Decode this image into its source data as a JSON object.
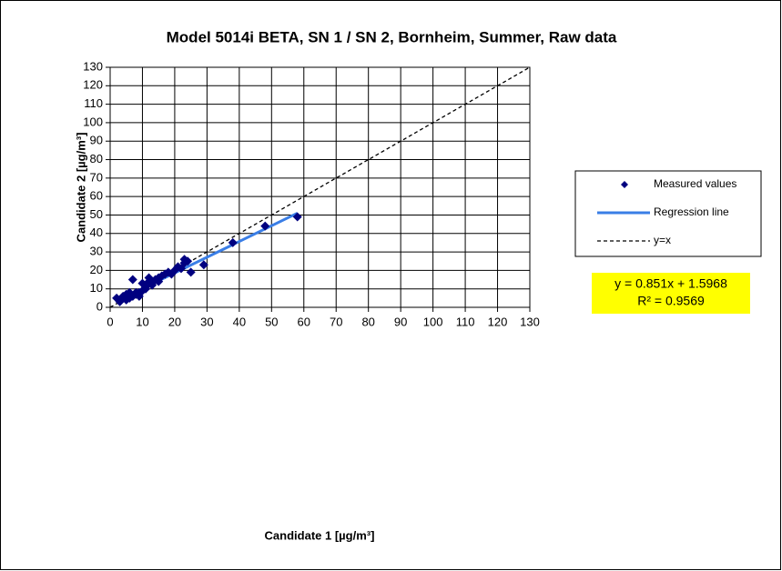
{
  "chart_data": {
    "type": "scatter",
    "title": "Model 5014i BETA, SN 1 / SN 2, Bornheim, Summer, Raw data",
    "x_label": "Candidate 1 [µg/m³]",
    "y_label": "Candidate 2 [µg/m³]",
    "xlim": [
      0,
      130
    ],
    "ylim": [
      0,
      130
    ],
    "xticks": [
      0,
      10,
      20,
      30,
      40,
      50,
      60,
      70,
      80,
      90,
      100,
      110,
      120,
      130
    ],
    "yticks": [
      0,
      10,
      20,
      30,
      40,
      50,
      60,
      70,
      80,
      90,
      100,
      110,
      120,
      130
    ],
    "grid": true,
    "legend": "right",
    "series": [
      {
        "name": "Measured values",
        "color": "#000080",
        "style": "marker",
        "x": [
          2,
          3,
          3,
          4,
          4,
          5,
          5,
          6,
          6,
          6,
          7,
          7,
          8,
          8,
          9,
          9,
          10,
          10,
          11,
          11,
          12,
          12,
          13,
          13,
          14,
          15,
          15,
          16,
          17,
          18,
          19,
          20,
          21,
          22,
          23,
          23,
          24,
          25,
          29,
          38,
          48,
          58
        ],
        "values": [
          5,
          4,
          3,
          6,
          5,
          7,
          4,
          5,
          8,
          6,
          15,
          6,
          7,
          8,
          6,
          8,
          9,
          13,
          10,
          11,
          14,
          16,
          12,
          13,
          15,
          14,
          16,
          17,
          18,
          19,
          18,
          20,
          22,
          21,
          26,
          24,
          25,
          19,
          23,
          35,
          44,
          49
        ]
      },
      {
        "name": "Regression line",
        "color": "#3a7ee6",
        "style": "line",
        "x": [
          2,
          58
        ],
        "values": [
          3.3,
          51.0
        ]
      },
      {
        "name": "y=x",
        "color": "#000000",
        "style": "dashed",
        "x": [
          0,
          130
        ],
        "values": [
          0,
          130
        ]
      }
    ],
    "annotations": [
      "y = 0.851x + 1.5968",
      "R² = 0.9569"
    ]
  }
}
